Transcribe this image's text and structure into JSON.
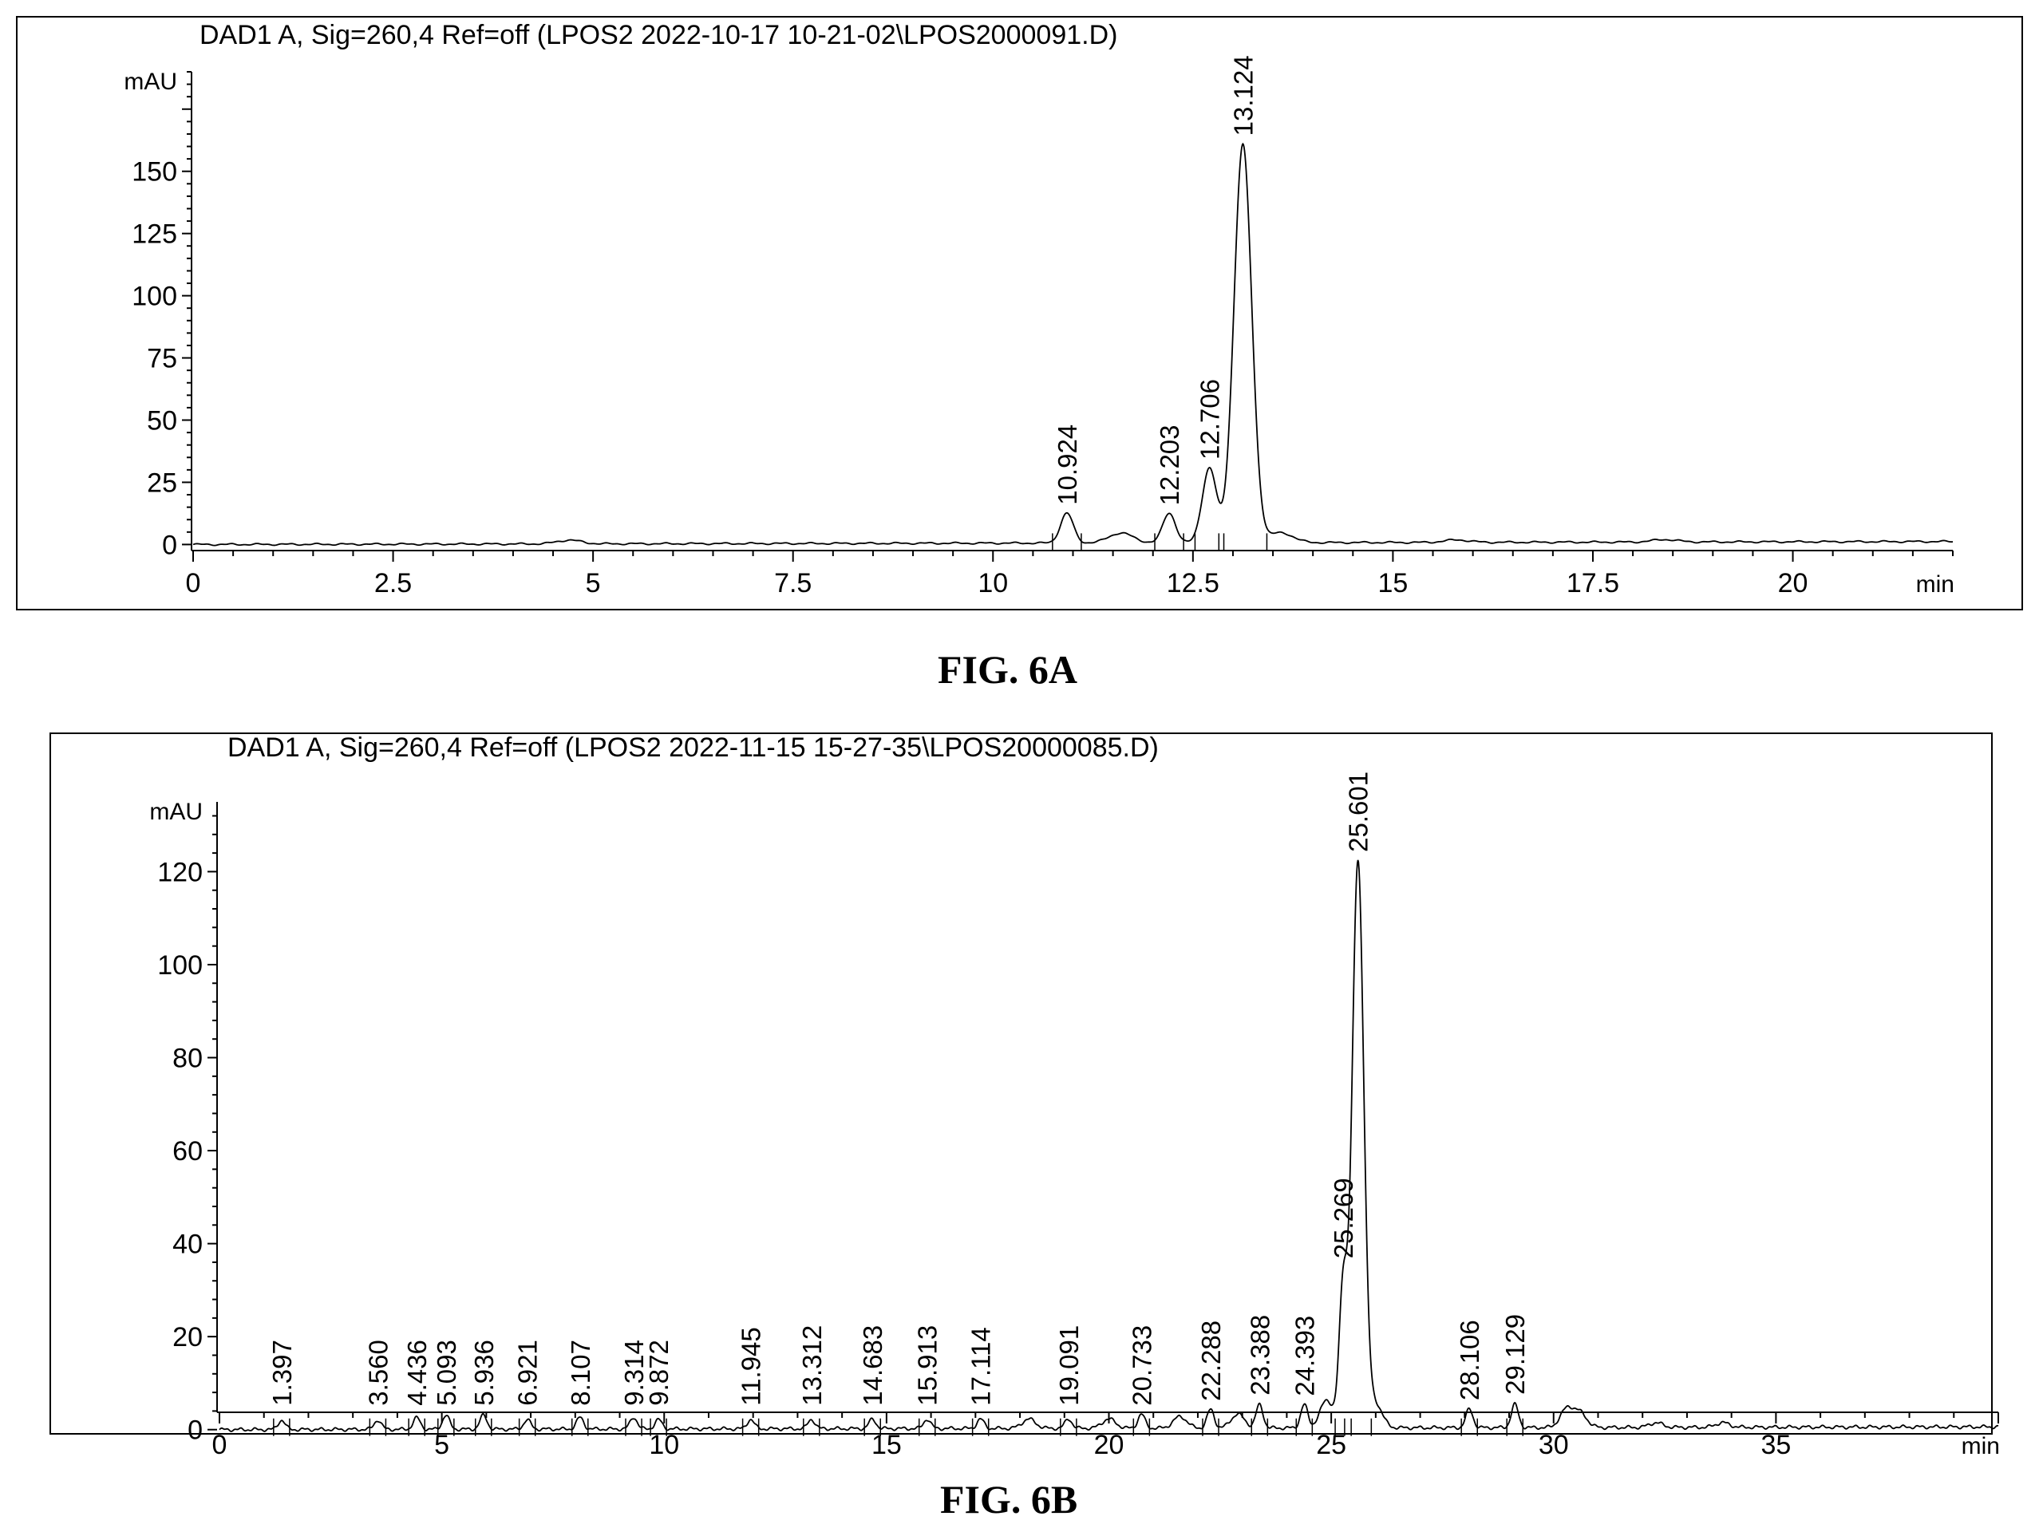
{
  "figures": [
    {
      "header": "DAD1 A, Sig=260,4 Ref=off (LPOS2 2022-10-17 10-21-02\\LPOS2000091.D)",
      "caption": "FIG. 6A"
    },
    {
      "header": "DAD1 A, Sig=260,4 Ref=off (LPOS2 2022-11-15 15-27-35\\LPOS20000085.D)",
      "caption": "FIG. 6B"
    }
  ],
  "chart_data": [
    {
      "type": "line",
      "ylabel": "mAU",
      "xlabel": "min",
      "xlim": [
        0,
        22
      ],
      "ylim": [
        -5,
        190
      ],
      "xticks": [
        "0",
        "2.5",
        "5",
        "7.5",
        "10",
        "12.5",
        "15",
        "17.5",
        "20"
      ],
      "yticks": [
        "0",
        "25",
        "50",
        "75",
        "100",
        "125",
        "150"
      ],
      "peaks": [
        {
          "label": "10.924",
          "x": 10.924,
          "y": 12
        },
        {
          "label": "12.203",
          "x": 12.203,
          "y": 12
        },
        {
          "label": "12.706",
          "x": 12.706,
          "y": 30
        },
        {
          "label": "13.124",
          "x": 13.124,
          "y": 160
        }
      ],
      "minor_bumps": [
        {
          "x": 11.6,
          "y": 4
        },
        {
          "x": 13.6,
          "y": 4
        },
        {
          "x": 4.7,
          "y": 1.5
        },
        {
          "x": 15.8,
          "y": 1
        },
        {
          "x": 18.4,
          "y": 1
        }
      ],
      "baseline": 0
    },
    {
      "type": "line",
      "ylabel": "mAU",
      "xlabel": "min",
      "xlim": [
        0,
        40
      ],
      "ylim": [
        -10,
        135
      ],
      "xticks": [
        "0",
        "5",
        "10",
        "15",
        "20",
        "25",
        "30",
        "35"
      ],
      "yticks": [
        "0",
        "20",
        "40",
        "60",
        "80",
        "100",
        "120"
      ],
      "peaks": [
        {
          "label": "1.397",
          "x": 1.397,
          "y": 2
        },
        {
          "label": "3.560",
          "x": 3.56,
          "y": 2
        },
        {
          "label": "4.436",
          "x": 4.436,
          "y": 2.5
        },
        {
          "label": "5.093",
          "x": 5.093,
          "y": 3
        },
        {
          "label": "5.936",
          "x": 5.936,
          "y": 3
        },
        {
          "label": "6.921",
          "x": 6.921,
          "y": 2
        },
        {
          "label": "8.107",
          "x": 8.107,
          "y": 2.5
        },
        {
          "label": "9.314",
          "x": 9.314,
          "y": 2.5
        },
        {
          "label": "9.872",
          "x": 9.872,
          "y": 2
        },
        {
          "label": "11.945",
          "x": 11.945,
          "y": 2
        },
        {
          "label": "13.312",
          "x": 13.312,
          "y": 2
        },
        {
          "label": "14.683",
          "x": 14.683,
          "y": 2
        },
        {
          "label": "15.913",
          "x": 15.913,
          "y": 2
        },
        {
          "label": "17.114",
          "x": 17.114,
          "y": 2
        },
        {
          "label": "19.091",
          "x": 19.091,
          "y": 2
        },
        {
          "label": "20.733",
          "x": 20.733,
          "y": 3
        },
        {
          "label": "22.288",
          "x": 22.288,
          "y": 4
        },
        {
          "label": "23.388",
          "x": 23.388,
          "y": 5
        },
        {
          "label": "24.393",
          "x": 24.393,
          "y": 5
        },
        {
          "label": "25.269",
          "x": 25.269,
          "y": 30
        },
        {
          "label": "25.601",
          "x": 25.601,
          "y": 122
        },
        {
          "label": "28.106",
          "x": 28.106,
          "y": 4
        },
        {
          "label": "29.129",
          "x": 29.129,
          "y": 5
        }
      ],
      "minor_bumps": [
        {
          "x": 18.2,
          "y": 2
        },
        {
          "x": 20.0,
          "y": 2
        },
        {
          "x": 21.6,
          "y": 2.5
        },
        {
          "x": 22.9,
          "y": 3
        },
        {
          "x": 24.9,
          "y": 6
        },
        {
          "x": 26.0,
          "y": 5
        },
        {
          "x": 30.3,
          "y": 4
        },
        {
          "x": 30.6,
          "y": 3
        },
        {
          "x": 32.3,
          "y": 1
        },
        {
          "x": 33.8,
          "y": 1
        }
      ],
      "baseline": 0
    }
  ]
}
